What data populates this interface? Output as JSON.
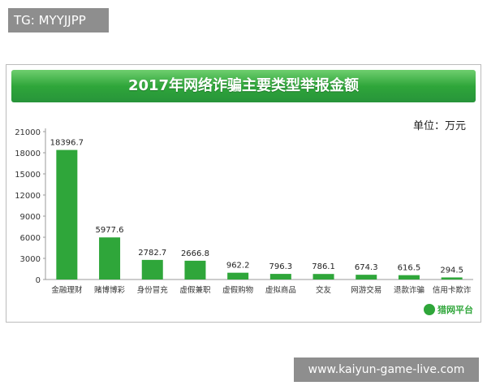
{
  "overlays": {
    "top_tag": "TG: MYYJJPP",
    "bottom_tag": "www.kaiyun-game-live.com"
  },
  "colors": {
    "bar": "#2fa63a",
    "banner": "#2fa63a"
  },
  "logo_text": "猎网平台",
  "chart_data": {
    "type": "bar",
    "title": "2017年网络诈骗主要类型举报金额",
    "unit_label": "单位：万元",
    "xlabel": "",
    "ylabel": "",
    "ylim": [
      0,
      21000
    ],
    "yticks": [
      0,
      3000,
      6000,
      9000,
      12000,
      15000,
      18000,
      21000
    ],
    "grid": false,
    "legend": "none",
    "categories": [
      "金融理财",
      "赌博博彩",
      "身份冒充",
      "虚假兼职",
      "虚假购物",
      "虚拟商品",
      "交友",
      "网游交易",
      "退款诈骗",
      "信用卡欺诈"
    ],
    "values": [
      18396.7,
      5977.6,
      2782.7,
      2666.8,
      962.2,
      796.3,
      786.1,
      674.3,
      616.5,
      294.5
    ],
    "value_labels": [
      "18396.7",
      "5977.6",
      "2782.7",
      "2666.8",
      "962.2",
      "796.3",
      "786.1",
      "674.3",
      "616.5",
      "294.5"
    ]
  }
}
